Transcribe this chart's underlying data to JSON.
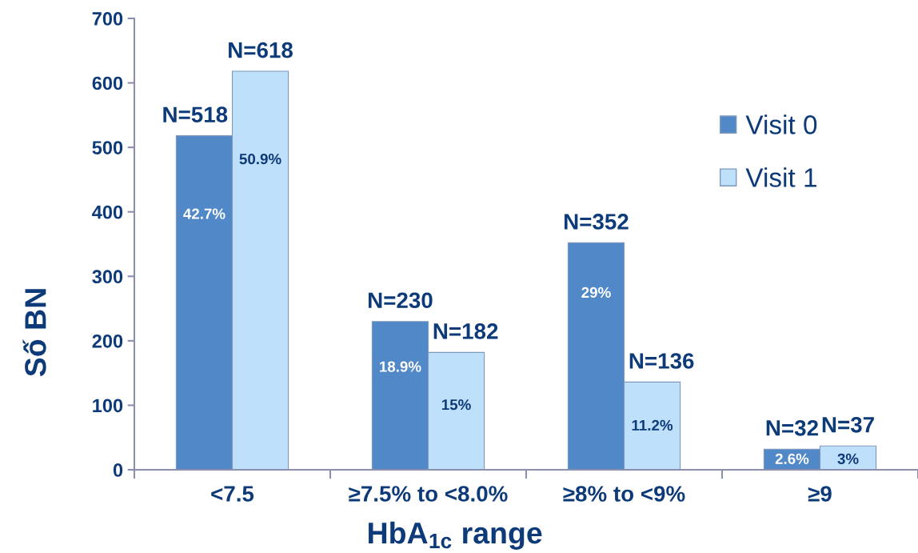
{
  "chart_data": {
    "type": "bar",
    "xlabel": "HbA$_{1c}$ range",
    "ylabel": "Số BN",
    "categories": [
      "<7.5",
      "≥7.5% to <8.0%",
      "≥8% to <9%",
      "≥9"
    ],
    "series": [
      {
        "name": "Visit 0",
        "color": "#5088c8",
        "values": [
          518,
          230,
          352,
          32
        ],
        "value_labels": [
          "N=518",
          "N=230",
          "N=352",
          "N=32"
        ]
      },
      {
        "name": "Visit 1",
        "color": "#bfe0fa",
        "values": [
          618,
          182,
          136,
          37
        ],
        "value_labels": [
          "N=618",
          "N=182",
          "N=136",
          "N=37"
        ]
      }
    ],
    "ylim": [
      0,
      700
    ],
    "yticks": [
      0,
      100,
      200,
      300,
      400,
      500,
      600,
      700
    ],
    "legend": "top right",
    "annotations": [
      {
        "text": "42.7%",
        "x": "<7.5",
        "y": 395
      },
      {
        "text": "50.9%",
        "x": "<7.5",
        "y": 480
      },
      {
        "text": "18.9%",
        "x": "≥7.5% to <8.0%",
        "y": 158
      },
      {
        "text": "15%",
        "x": "≥7.5% to <8.0%",
        "y": 99
      },
      {
        "text": "29%",
        "x": "≥8% to <9%",
        "y": 273
      },
      {
        "text": "11.2%",
        "x": "≥8% to <9%",
        "y": 67
      },
      {
        "text": "2.6%",
        "x": "≥9",
        "y": 15
      },
      {
        "text": "3%",
        "x": "≥9",
        "y": 15
      }
    ]
  }
}
